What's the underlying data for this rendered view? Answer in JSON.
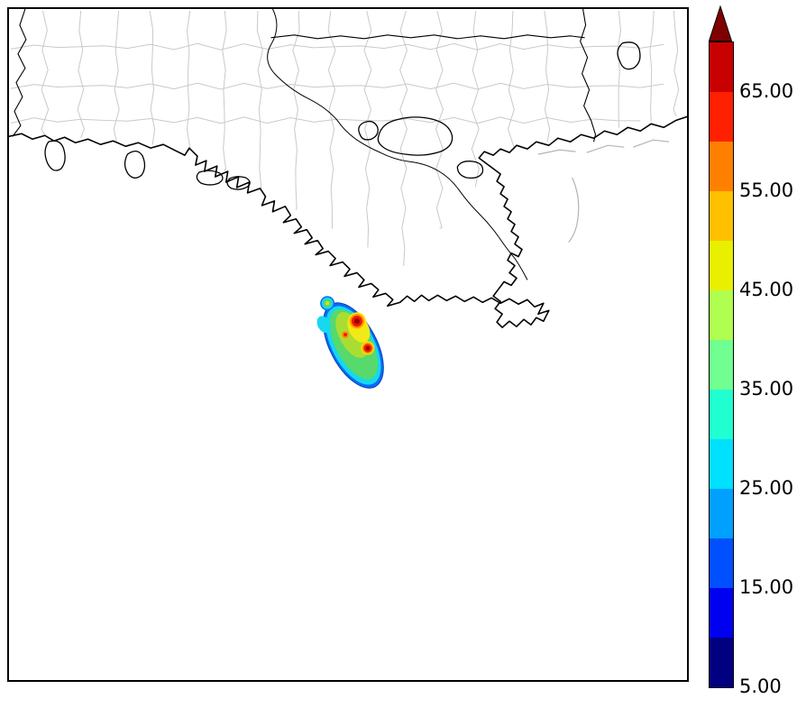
{
  "chart_data": {
    "type": "heatmap",
    "title": "",
    "description_region": "Southern Louisiana coastline with parish boundaries; scalar field plume offshore in the Gulf",
    "colorbar": {
      "orientation": "vertical",
      "extend": "max",
      "vmin": 5,
      "vmax": 70,
      "tick_labels": [
        "65.00",
        "55.00",
        "45.00",
        "35.00",
        "25.00",
        "15.00",
        "5.00"
      ],
      "tick_values": [
        65,
        55,
        45,
        35,
        25,
        15,
        5
      ],
      "segment_colors_bottom_to_top": [
        "#000080",
        "#0000f0",
        "#0050ff",
        "#00a0ff",
        "#00e0ff",
        "#20ffd0",
        "#70ff90",
        "#b0ff50",
        "#e8f000",
        "#ffc000",
        "#ff8000",
        "#ff2000",
        "#c80000"
      ],
      "over_color": "#7f0000",
      "outline_color": "#000000"
    },
    "map": {
      "coastline_color": "#000000",
      "parish_boundary_color": "#c9c9c9",
      "background_color": "#ffffff"
    },
    "plume": {
      "location": "offshore, south of the Louisiana coast",
      "edge_value": 25,
      "body_value": 40,
      "patch_value": 50,
      "core_value": 67
    }
  }
}
